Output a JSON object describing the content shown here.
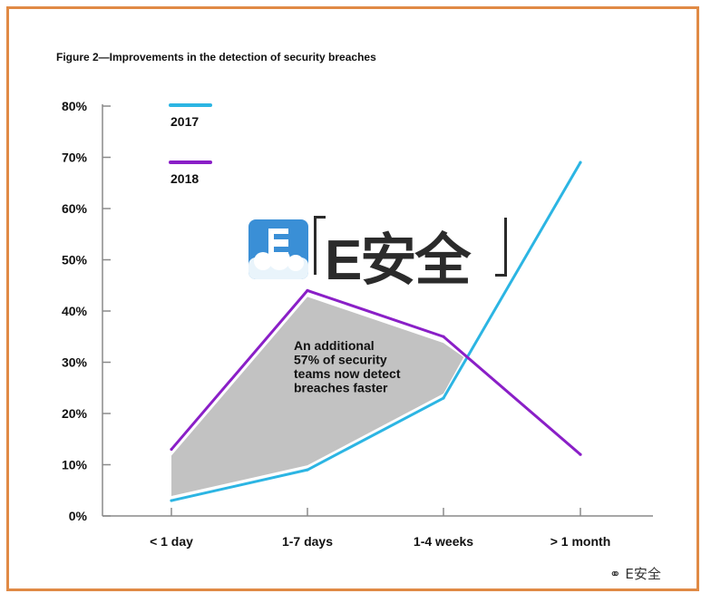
{
  "chart_data": {
    "type": "line",
    "title": "Figure 2—Improvements in the detection of security breaches",
    "categories": [
      "< 1 day",
      "1-7 days",
      "1-4 weeks",
      "> 1 month"
    ],
    "y_ticks": [
      "0%",
      "10%",
      "20%",
      "30%",
      "40%",
      "50%",
      "60%",
      "70%",
      "80%"
    ],
    "ylim": [
      0,
      80
    ],
    "series": [
      {
        "name": "2017",
        "values": [
          3,
          9,
          23,
          69
        ],
        "color": "#2cb5e3"
      },
      {
        "name": "2018",
        "values": [
          13,
          44,
          35,
          12
        ],
        "color": "#8a1fc7"
      }
    ],
    "annotation": "An additional 57% of security teams now detect breaches faster",
    "annotation_lines": [
      "An additional",
      "57% of security",
      "teams now detect",
      "breaches faster"
    ],
    "shaded_region_color": "#c2c2c2",
    "grid": false,
    "legend_position": "top-left"
  },
  "watermark": {
    "logo_letter": "E",
    "text": "E安全",
    "footer": "E安全"
  },
  "colors": {
    "border": "#e08a45",
    "axis": "#8a8a8a"
  }
}
